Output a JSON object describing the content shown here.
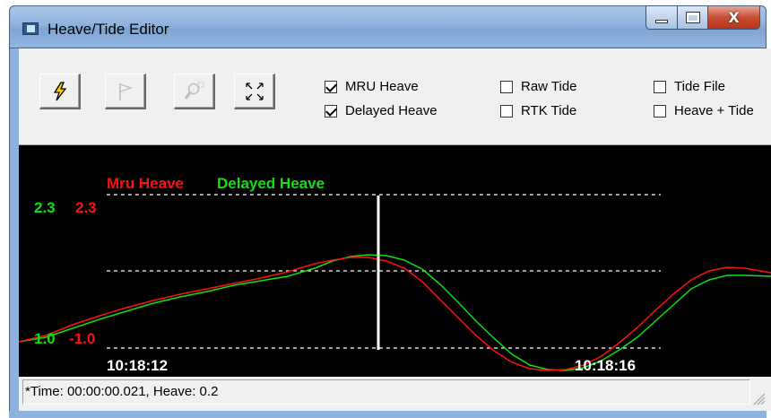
{
  "window": {
    "title": "Heave/Tide Editor",
    "controls": {
      "minimize": "minimize",
      "maximize": "maximize",
      "close": "X"
    }
  },
  "toolbar": {
    "buttons": [
      {
        "icon": "lightning-icon",
        "enabled": true
      },
      {
        "icon": "flag-icon",
        "enabled": false
      },
      {
        "icon": "zoom-icon",
        "enabled": false
      },
      {
        "icon": "expand-icon",
        "enabled": true
      }
    ],
    "checkboxes": {
      "mru_heave": {
        "label": "MRU Heave",
        "checked": true
      },
      "delayed_heave": {
        "label": "Delayed Heave",
        "checked": true
      },
      "raw_tide": {
        "label": "Raw Tide",
        "checked": false
      },
      "rtk_tide": {
        "label": "RTK Tide",
        "checked": false
      },
      "tide_file": {
        "label": "Tide File",
        "checked": false
      },
      "heave_tide": {
        "label": "Heave + Tide",
        "checked": false
      }
    }
  },
  "plot": {
    "legend": {
      "mru": "Mru Heave",
      "delayed": "Delayed Heave"
    },
    "y_labels": {
      "top_green": "2.3",
      "top_red": "2.3",
      "bottom_green": "1.0",
      "bottom_red": "-1.0"
    },
    "x_labels": {
      "left": "10:18:12",
      "right": "10:18:16"
    },
    "colors": {
      "mru": "#ff1010",
      "delayed": "#10e010",
      "background": "#000000",
      "grid": "#ffffff",
      "cursor": "#ffffff"
    }
  },
  "status": {
    "text": "*Time: 00:00:00.021, Heave: 0.2"
  }
}
